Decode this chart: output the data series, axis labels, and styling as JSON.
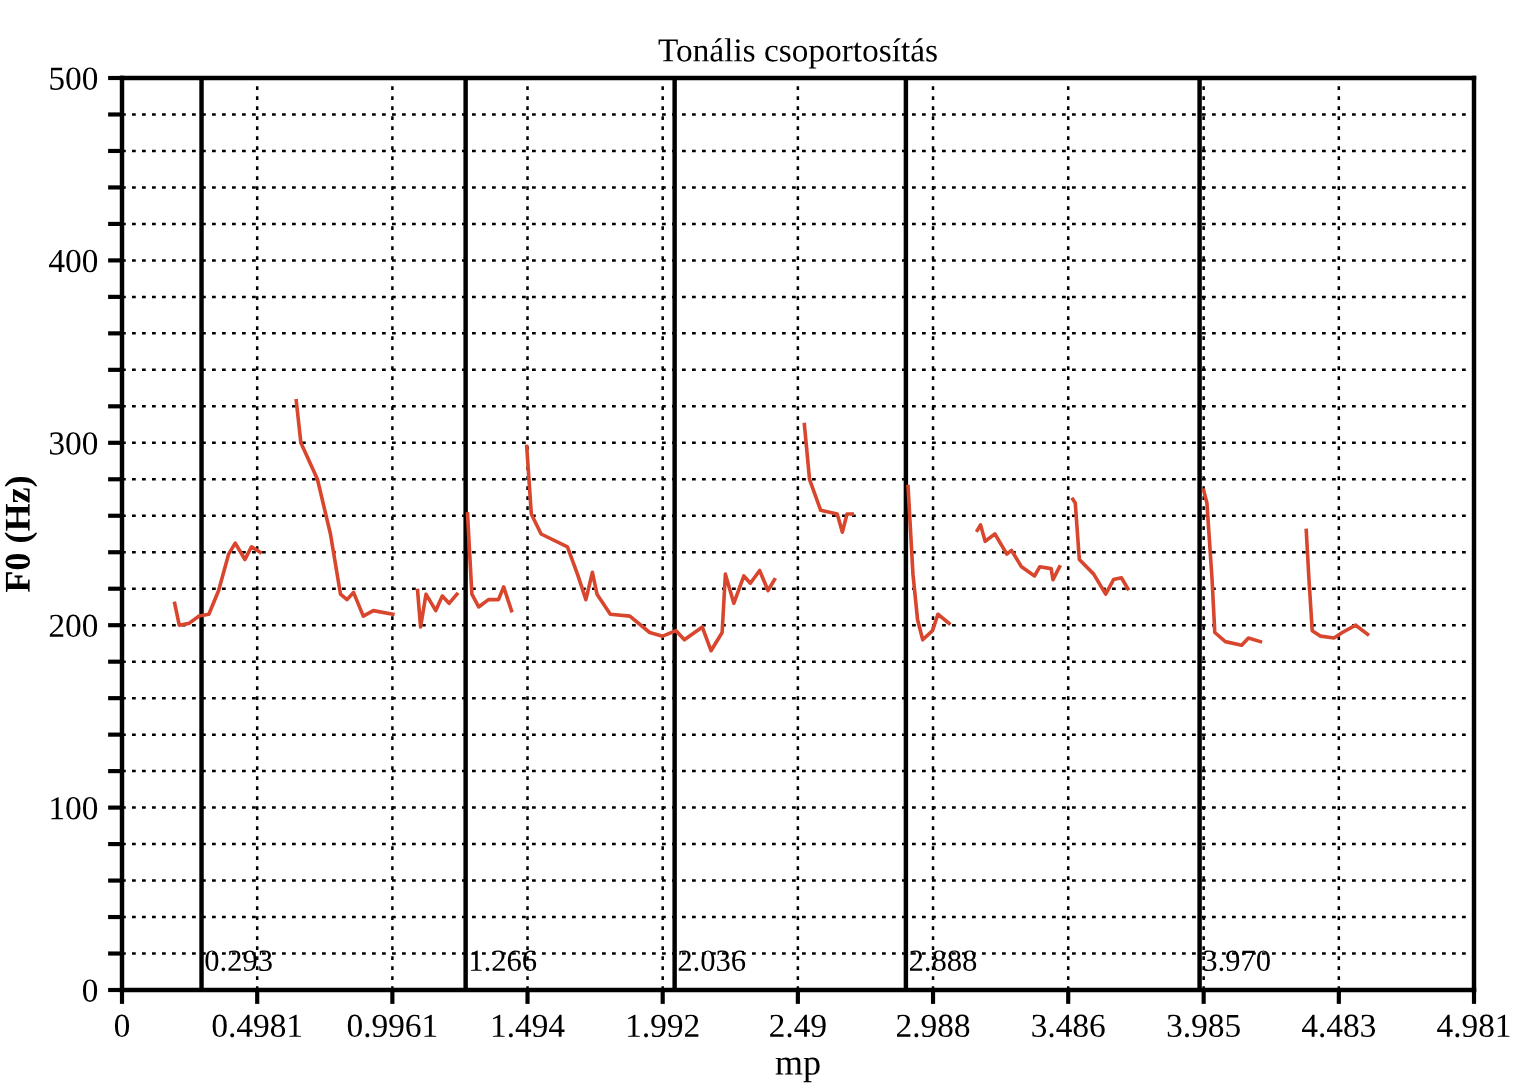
{
  "chart_data": {
    "type": "line",
    "title": "Tonális csoportosítás",
    "xlabel": "mp",
    "ylabel": "F0 (Hz)",
    "xlim": [
      0,
      4.981
    ],
    "xticks": [
      0,
      0.4981,
      0.9961,
      1.494,
      1.992,
      2.49,
      2.988,
      3.486,
      3.985,
      4.483,
      4.981
    ],
    "ylim": [
      0,
      500
    ],
    "yticks": [
      0,
      {
        "value": 20,
        "label": null
      },
      {
        "value": 40,
        "label": null
      },
      {
        "value": 60,
        "label": null
      },
      {
        "value": 80,
        "label": null
      },
      100,
      {
        "value": 120,
        "label": null
      },
      {
        "value": 140,
        "label": null
      },
      {
        "value": 160,
        "label": null
      },
      {
        "value": 180,
        "label": null
      },
      200,
      {
        "value": 220,
        "label": null
      },
      {
        "value": 240,
        "label": null
      },
      {
        "value": 260,
        "label": null
      },
      {
        "value": 280,
        "label": null
      },
      300,
      {
        "value": 320,
        "label": null
      },
      {
        "value": 340,
        "label": null
      },
      {
        "value": 360,
        "label": null
      },
      {
        "value": 380,
        "label": null
      },
      400,
      {
        "value": 420,
        "label": null
      },
      {
        "value": 440,
        "label": null
      },
      {
        "value": 460,
        "label": null
      },
      {
        "value": 480,
        "label": null
      },
      500
    ],
    "grid": true,
    "marker": "none",
    "line_style": "solid",
    "series": [
      {
        "color": "#d9462e",
        "x": [
          0.194,
          0.211,
          0.247,
          0.284,
          0.32,
          0.356,
          0.393,
          0.417,
          0.453,
          0.477,
          0.509,
          0.575,
          0.642,
          0.659,
          0.72,
          0.768,
          0.805,
          0.829,
          0.853,
          0.889,
          0.926,
          0.998,
          1.04,
          1.089,
          1.1,
          1.12,
          1.156,
          1.18,
          1.205,
          1.234,
          1.25,
          1.273,
          1.289,
          1.314,
          1.35,
          1.387,
          1.406,
          1.435,
          1.46,
          1.491,
          1.508,
          1.544,
          1.641,
          1.678,
          1.709,
          1.733,
          1.75,
          1.799,
          1.871,
          1.944,
          1.992,
          2.041,
          2.072,
          2.138,
          2.17,
          2.211,
          2.223,
          2.254,
          2.291,
          2.315,
          2.349,
          2.38,
          2.404,
          2.46,
          2.514,
          2.533,
          2.574,
          2.635,
          2.654,
          2.671,
          2.69,
          2.79,
          2.896,
          2.914,
          2.931,
          2.95,
          2.986,
          3.006,
          3.047,
          3.1,
          3.151,
          3.163,
          3.18,
          3.216,
          3.26,
          3.277,
          3.314,
          3.362,
          3.381,
          3.423,
          3.43,
          3.454,
          3.48,
          3.503,
          3.512,
          3.527,
          3.58,
          3.624,
          3.653,
          3.682,
          3.706,
          3.85,
          3.985,
          3.997,
          4.016,
          4.026,
          4.065,
          4.125,
          4.15,
          4.194,
          4.28,
          4.363,
          4.373,
          4.385,
          4.416,
          4.465,
          4.496,
          4.545,
          4.589
        ],
        "values": [
          212,
          200,
          201,
          205,
          206,
          219,
          239,
          245,
          236,
          243,
          240,
          null,
          323,
          300,
          280,
          250,
          217,
          214,
          218,
          205,
          208,
          206,
          null,
          219,
          199,
          217,
          208,
          216,
          212,
          217,
          null,
          261,
          217,
          210,
          214,
          214,
          221,
          208,
          null,
          298,
          261,
          250,
          243,
          228,
          214,
          229,
          217,
          206,
          205,
          196,
          194,
          197,
          192,
          199,
          186,
          196,
          228,
          212,
          227,
          223,
          230,
          219,
          225,
          null,
          310,
          280,
          263,
          261,
          251,
          261,
          261,
          null,
          276,
          228,
          203,
          192,
          197,
          206,
          201,
          null,
          252,
          255,
          246,
          250,
          239,
          241,
          232,
          227,
          232,
          231,
          225,
          232,
          null,
          269,
          267,
          236,
          228,
          217,
          225,
          226,
          220,
          null,
          274,
          267,
          225,
          196,
          191,
          189,
          193,
          191,
          null,
          252,
          225,
          197,
          194,
          193,
          196,
          200,
          195
        ]
      }
    ],
    "ref_lines": [
      {
        "axis": "x",
        "value": 0.293,
        "label": "0.293",
        "color": "#000000",
        "line_style": "solid"
      },
      {
        "axis": "x",
        "value": 1.266,
        "label": "1.266",
        "color": "#000000",
        "line_style": "solid"
      },
      {
        "axis": "x",
        "value": 2.036,
        "label": "2.036",
        "color": "#000000",
        "line_style": "solid"
      },
      {
        "axis": "x",
        "value": 2.888,
        "label": "2.888",
        "color": "#000000",
        "line_style": "solid"
      },
      {
        "axis": "x",
        "value": 3.97,
        "label": "3.970",
        "color": "#000000",
        "line_style": "solid"
      }
    ]
  }
}
